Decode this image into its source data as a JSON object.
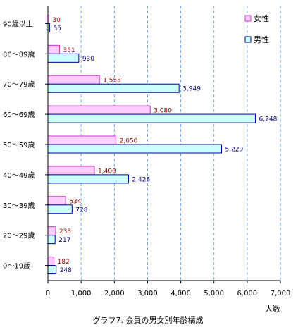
{
  "chart_data": {
    "type": "bar",
    "orientation": "horizontal",
    "title": "グラフ7. 会員の男女別年齢構成",
    "xlabel": "人数",
    "ylabel": "",
    "xlim": [
      0,
      7000
    ],
    "x_ticks": [
      0,
      1000,
      2000,
      3000,
      4000,
      5000,
      6000,
      7000
    ],
    "x_tick_labels": [
      "0",
      "1,000",
      "2,000",
      "3,000",
      "4,000",
      "5,000",
      "6,000",
      "7,000"
    ],
    "grid": true,
    "legend": "top-right",
    "categories": [
      "90歳以上",
      "80〜89歳",
      "70〜79歳",
      "60〜69歳",
      "50〜59歳",
      "40〜49歳",
      "30〜39歳",
      "20〜29歳",
      "0〜19歳"
    ],
    "series": [
      {
        "name": "女性",
        "values": [
          30,
          351,
          1553,
          3080,
          2050,
          1400,
          534,
          233,
          182
        ],
        "labels": [
          "30",
          "351",
          "1,553",
          "3,080",
          "2,050",
          "1,400",
          "534",
          "233",
          "182"
        ],
        "fill": "#ffccff",
        "stroke": "#cc33cc",
        "label_color": "#990000"
      },
      {
        "name": "男性",
        "values": [
          55,
          930,
          3949,
          6248,
          5229,
          2428,
          728,
          217,
          248
        ],
        "labels": [
          "55",
          "930",
          "3,949",
          "6,248",
          "5,229",
          "2,428",
          "728",
          "217",
          "248"
        ],
        "fill": "#ccffff",
        "stroke": "#000099",
        "label_color": "#000080"
      }
    ]
  }
}
